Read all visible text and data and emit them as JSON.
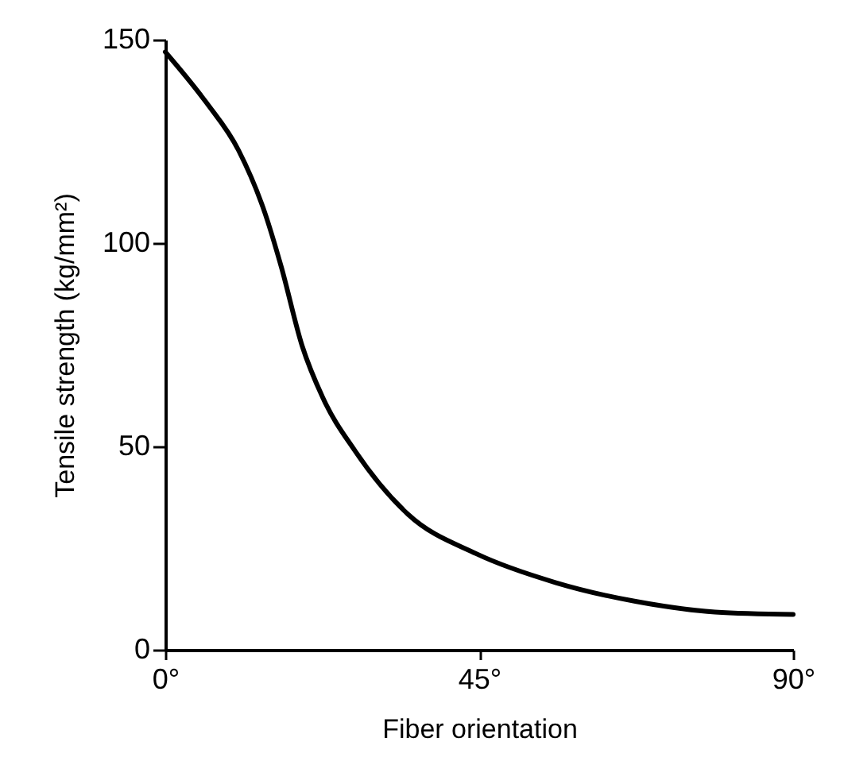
{
  "chart_data": {
    "type": "line",
    "xlabel": "Fiber orientation",
    "ylabel": "Tensile strength (kg/mm²)",
    "x": [
      0,
      5.9,
      10.5,
      14.3,
      16.6,
      19.6,
      22.6,
      27.2,
      34.8,
      44.6,
      56,
      67.4,
      78.8,
      90
    ],
    "series": [
      {
        "color": "#000000",
        "values": [
          147,
          134.5,
          122.8,
          107.3,
          94.3,
          74.8,
          61.9,
          48.9,
          33.3,
          23.6,
          16.5,
          11.9,
          9.3,
          8.7
        ]
      }
    ],
    "xlim": [
      0,
      90
    ],
    "xticks": [
      {
        "value": 0,
        "label": "0°"
      },
      {
        "value": 45,
        "label": "45°"
      },
      {
        "value": 90,
        "label": "90°"
      }
    ],
    "ylim": [
      0,
      150
    ],
    "yticks": [
      0,
      50,
      100,
      150
    ],
    "grid": false,
    "legend": false,
    "marker": "none",
    "line_style": "solid"
  }
}
